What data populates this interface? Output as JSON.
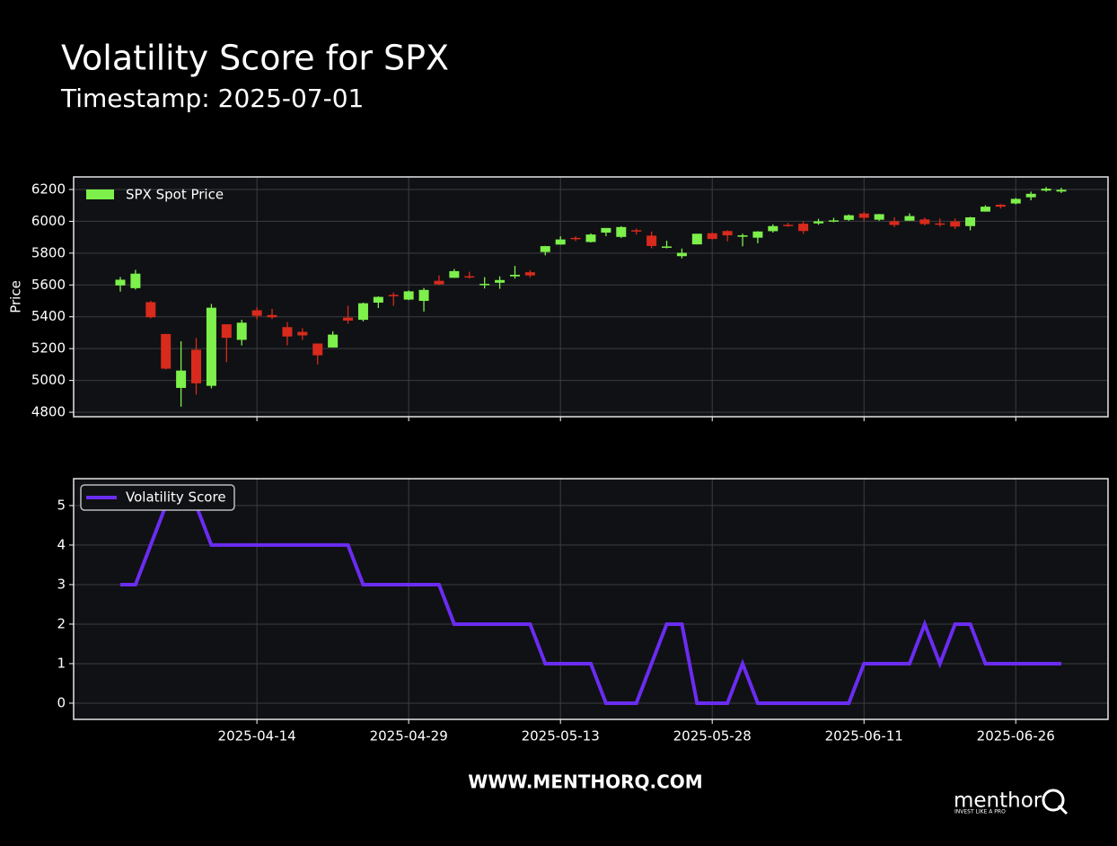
{
  "header": {
    "title": "Volatility Score for SPX",
    "subtitle": "Timestamp: 2025-07-01"
  },
  "chart_data": [
    {
      "type": "candlestick",
      "x": [
        "2025-04-01",
        "2025-04-02",
        "2025-04-03",
        "2025-04-04",
        "2025-04-07",
        "2025-04-08",
        "2025-04-09",
        "2025-04-10",
        "2025-04-11",
        "2025-04-14",
        "2025-04-15",
        "2025-04-16",
        "2025-04-17",
        "2025-04-21",
        "2025-04-22",
        "2025-04-23",
        "2025-04-24",
        "2025-04-25",
        "2025-04-28",
        "2025-04-29",
        "2025-04-30",
        "2025-05-01",
        "2025-05-02",
        "2025-05-05",
        "2025-05-06",
        "2025-05-07",
        "2025-05-08",
        "2025-05-09",
        "2025-05-12",
        "2025-05-13",
        "2025-05-14",
        "2025-05-15",
        "2025-05-16",
        "2025-05-19",
        "2025-05-20",
        "2025-05-21",
        "2025-05-22",
        "2025-05-23",
        "2025-05-27",
        "2025-05-28",
        "2025-05-29",
        "2025-05-30",
        "2025-06-02",
        "2025-06-03",
        "2025-06-04",
        "2025-06-05",
        "2025-06-06",
        "2025-06-09",
        "2025-06-10",
        "2025-06-11",
        "2025-06-12",
        "2025-06-13",
        "2025-06-16",
        "2025-06-17",
        "2025-06-18",
        "2025-06-20",
        "2025-06-23",
        "2025-06-24",
        "2025-06-25",
        "2025-06-26",
        "2025-06-27",
        "2025-06-30",
        "2025-07-01"
      ],
      "series": [
        {
          "name": "SPX Spot Price",
          "up_color": "#7df04b",
          "down_color": "#d82a1d",
          "open": [
            5597,
            5580,
            5492,
            5292,
            4953,
            5193,
            4966,
            5353,
            5255,
            5441,
            5411,
            5335,
            5305,
            5232,
            5207,
            5395,
            5381,
            5489,
            5538,
            5508,
            5500,
            5626,
            5645,
            5655,
            5605,
            5614,
            5654,
            5680,
            5807,
            5854,
            5896,
            5870,
            5929,
            5902,
            5944,
            5910,
            5841,
            5781,
            5855,
            5925,
            5939,
            5903,
            5897,
            5938,
            5978,
            5985,
            5987,
            6005,
            6009,
            6049,
            6010,
            6000,
            6004,
            6012,
            5987,
            5999,
            5970,
            6061,
            6104,
            6112,
            6151,
            6193,
            6187
          ],
          "high": [
            5650,
            5695,
            5500,
            5292,
            5246,
            5267,
            5481,
            5353,
            5381,
            5460,
            5450,
            5367,
            5328,
            5232,
            5309,
            5469,
            5489,
            5528,
            5553,
            5565,
            5581,
            5660,
            5700,
            5683,
            5649,
            5654,
            5720,
            5692,
            5846,
            5906,
            5906,
            5924,
            5958,
            5969,
            5954,
            5936,
            5878,
            5829,
            5922,
            5930,
            5944,
            5923,
            5938,
            5981,
            5990,
            5999,
            6016,
            6022,
            6043,
            6059,
            6046,
            6026,
            6050,
            6024,
            6018,
            6018,
            6028,
            6101,
            6108,
            6146,
            6187,
            6216,
            6211
          ],
          "low": [
            5558,
            5571,
            5390,
            5069,
            4835,
            4911,
            4950,
            5115,
            5220,
            5383,
            5386,
            5220,
            5255,
            5101,
            5207,
            5356,
            5371,
            5455,
            5469,
            5505,
            5433,
            5600,
            5644,
            5640,
            5578,
            5576,
            5640,
            5646,
            5786,
            5853,
            5876,
            5867,
            5907,
            5895,
            5917,
            5830,
            5830,
            5767,
            5855,
            5887,
            5874,
            5843,
            5862,
            5929,
            5966,
            5921,
            5978,
            5994,
            6003,
            6003,
            6003,
            5963,
            6004,
            5974,
            5966,
            5952,
            5943,
            6061,
            6080,
            6107,
            6132,
            6186,
            6178
          ],
          "close": [
            5633,
            5671,
            5397,
            5074,
            5062,
            4982,
            5457,
            5268,
            5363,
            5406,
            5397,
            5276,
            5283,
            5158,
            5288,
            5376,
            5485,
            5525,
            5529,
            5560,
            5569,
            5604,
            5687,
            5650,
            5607,
            5631,
            5664,
            5660,
            5844,
            5886,
            5892,
            5917,
            5958,
            5964,
            5940,
            5845,
            5842,
            5802,
            5922,
            5889,
            5912,
            5912,
            5936,
            5970,
            5971,
            5939,
            6000,
            6006,
            6038,
            6022,
            6045,
            5977,
            6033,
            5983,
            5981,
            5967,
            6025,
            6092,
            6092,
            6141,
            6173,
            6205,
            6198
          ]
        }
      ],
      "ylabel": "Price",
      "ylim": [
        4772,
        6279
      ],
      "yticks": [
        4800,
        5000,
        5200,
        5400,
        5600,
        5800,
        6000,
        6200
      ],
      "grid": true,
      "legend": "upper left"
    },
    {
      "type": "line",
      "x": [
        "2025-04-01",
        "2025-04-02",
        "2025-04-03",
        "2025-04-04",
        "2025-04-07",
        "2025-04-08",
        "2025-04-09",
        "2025-04-10",
        "2025-04-11",
        "2025-04-14",
        "2025-04-15",
        "2025-04-16",
        "2025-04-17",
        "2025-04-21",
        "2025-04-22",
        "2025-04-23",
        "2025-04-24",
        "2025-04-25",
        "2025-04-28",
        "2025-04-29",
        "2025-04-30",
        "2025-05-01",
        "2025-05-02",
        "2025-05-05",
        "2025-05-06",
        "2025-05-07",
        "2025-05-08",
        "2025-05-09",
        "2025-05-12",
        "2025-05-13",
        "2025-05-14",
        "2025-05-15",
        "2025-05-16",
        "2025-05-19",
        "2025-05-20",
        "2025-05-21",
        "2025-05-22",
        "2025-05-23",
        "2025-05-27",
        "2025-05-28",
        "2025-05-29",
        "2025-05-30",
        "2025-06-02",
        "2025-06-03",
        "2025-06-04",
        "2025-06-05",
        "2025-06-06",
        "2025-06-09",
        "2025-06-10",
        "2025-06-11",
        "2025-06-12",
        "2025-06-13",
        "2025-06-16",
        "2025-06-17",
        "2025-06-18",
        "2025-06-20",
        "2025-06-23",
        "2025-06-24",
        "2025-06-25",
        "2025-06-26",
        "2025-06-27",
        "2025-06-30",
        "2025-07-01"
      ],
      "series": [
        {
          "name": "Volatility Score",
          "color": "#6b2cf2",
          "values": [
            3,
            3,
            4,
            5,
            5,
            5,
            4,
            4,
            4,
            4,
            4,
            4,
            4,
            4,
            4,
            4,
            3,
            3,
            3,
            3,
            3,
            3,
            2,
            2,
            2,
            2,
            2,
            2,
            1,
            1,
            1,
            1,
            0,
            0,
            0,
            1,
            2,
            2,
            0,
            0,
            0,
            1,
            0,
            0,
            0,
            0,
            0,
            0,
            0,
            1,
            1,
            1,
            1,
            2,
            1,
            2,
            2,
            1,
            1,
            1,
            1,
            1,
            1
          ]
        }
      ],
      "ylim": [
        -0.41,
        5.68
      ],
      "yticks": [
        0,
        1,
        2,
        3,
        4,
        5
      ],
      "xticks": [
        "2025-04-14",
        "2025-04-29",
        "2025-05-13",
        "2025-05-28",
        "2025-06-11",
        "2025-06-26"
      ],
      "grid": true,
      "legend": "upper left"
    }
  ],
  "footer": {
    "website": "WWW.MENTHORQ.COM",
    "logo": "menthor",
    "tagline": "INVEST LIKE A PRO"
  }
}
